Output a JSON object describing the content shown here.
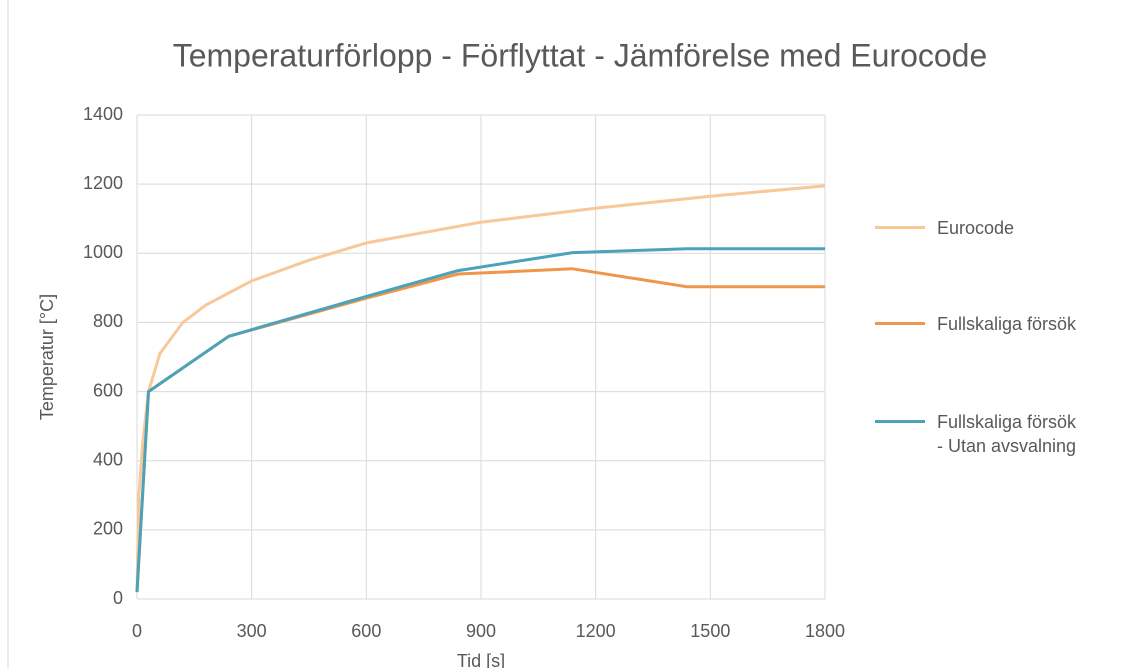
{
  "chart_data": {
    "type": "line",
    "title": "Temperaturförlopp - Förflyttat - Jämförelse med Eurocode",
    "x_label": "Tid [s]",
    "y_label": "Temperatur [°C]",
    "xlim": [
      0,
      1800
    ],
    "xticks": [
      0,
      300,
      600,
      900,
      1200,
      1500,
      1800
    ],
    "ylim": [
      0,
      1400
    ],
    "yticks": [
      0,
      200,
      400,
      600,
      800,
      1000,
      1200,
      1400
    ],
    "grid": true,
    "legend": "right",
    "series": [
      {
        "name": "Eurocode",
        "color": "#f8c89a",
        "x": [
          0,
          5,
          15,
          30,
          60,
          120,
          180,
          240,
          300,
          450,
          600,
          900,
          1200,
          1500,
          1800
        ],
        "values": [
          20,
          300,
          450,
          600,
          710,
          800,
          850,
          885,
          920,
          980,
          1030,
          1090,
          1130,
          1165,
          1195
        ]
      },
      {
        "name": "Fullskaliga försök",
        "color": "#f0964a",
        "x": [
          0,
          30,
          240,
          600,
          840,
          1140,
          1440,
          1800
        ],
        "values": [
          20,
          600,
          760,
          870,
          940,
          955,
          903,
          903
        ]
      },
      {
        "name": "Fullskaliga försök\n- Utan avsvalning",
        "color": "#4aa3b9",
        "x": [
          0,
          30,
          240,
          600,
          840,
          1140,
          1440,
          1800
        ],
        "values": [
          20,
          600,
          760,
          875,
          950,
          1002,
          1013,
          1013
        ]
      }
    ]
  }
}
